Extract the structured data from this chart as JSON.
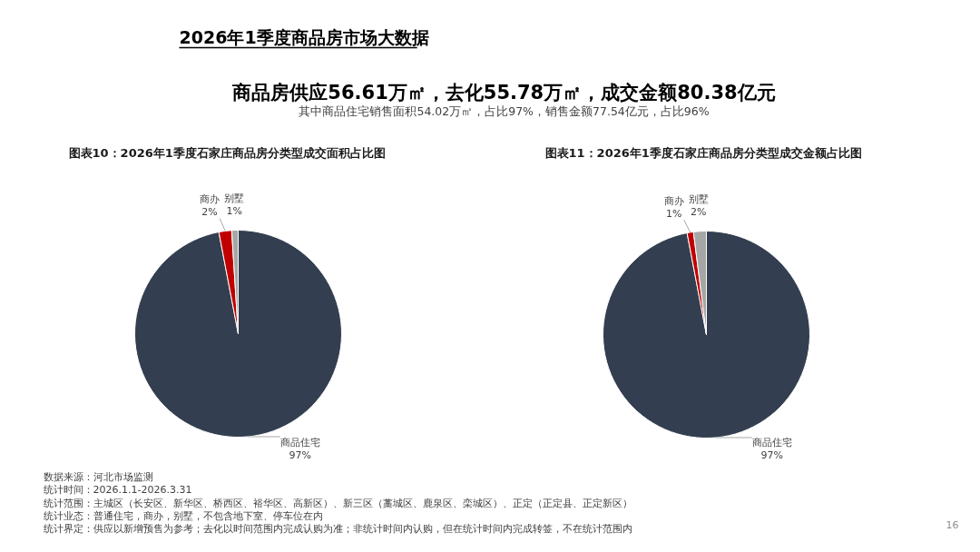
{
  "chart_data": [
    {
      "type": "other",
      "title": "2026年1季度商品房市场大数据",
      "subtitle": "商品房供应56.61万㎡，去化55.78万㎡，成交金额80.38亿元",
      "annotations": [
        "其中商品住宅销售面积54.02万㎡，占比97%，销售金额77.54亿元，占比96%"
      ]
    },
    {
      "type": "pie",
      "title": "图表10：2026年1季度石家庄商品房分类型成交面积占比图",
      "categories": [
        "商品住宅",
        "商办",
        "别墅"
      ],
      "values": [
        97,
        2,
        1
      ],
      "colors": [
        "#333f50",
        "#c00000",
        "#a6a6a6"
      ],
      "value_labels": [
        "97%",
        "2%",
        "1%"
      ]
    },
    {
      "type": "pie",
      "title": "图表11：2026年1季度石家庄商品房分类型成交金额占比图",
      "categories": [
        "商品住宅",
        "商办",
        "别墅"
      ],
      "values": [
        97,
        1,
        2
      ],
      "colors": [
        "#333f50",
        "#c00000",
        "#a6a6a6"
      ],
      "value_labels": [
        "97%",
        "1%",
        "2%"
      ]
    },
    {
      "type": "other",
      "annotations": [
        "数据来源：河北市场监测",
        "统计时间：2026.1.1-2026.3.31",
        "统计范围：主城区（长安区、新华区、桥西区、裕华区、高新区）、新三区（藁城区、鹿泉区、栾城区）、正定（正定县、正定新区）",
        "统计业态：普通住宅，商办，别墅，不包含地下室、停车位在内",
        "统计界定：供应以新增预售为参考；去化以时间范围内完成认购为准；非统计时间内认购，但在统计时间内完成转签，不在统计范围内",
        "16"
      ]
    }
  ]
}
